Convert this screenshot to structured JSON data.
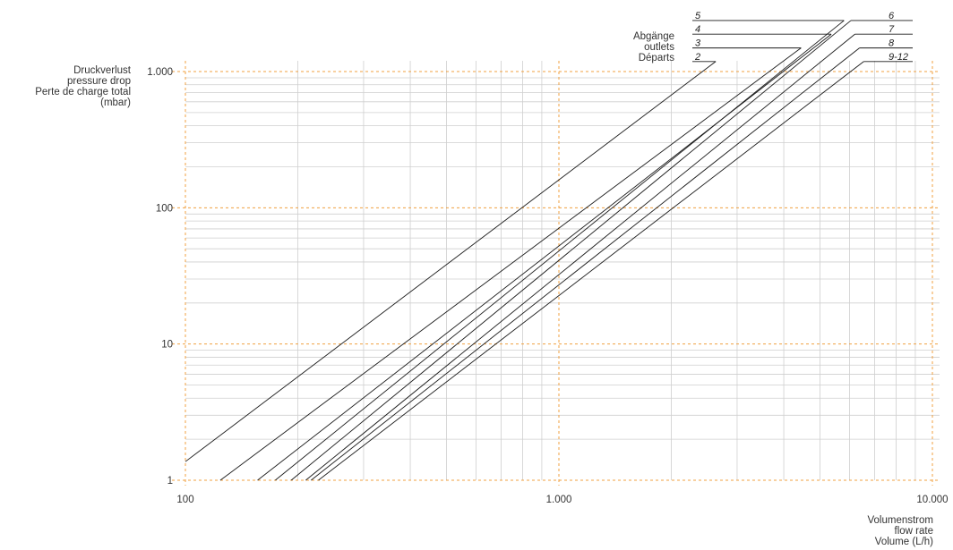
{
  "chart_data": {
    "type": "line",
    "xscale": "log",
    "yscale": "log",
    "xlim": [
      100,
      10000
    ],
    "ylim": [
      1,
      1000
    ],
    "grid": true,
    "ylabel": [
      "Druckverlust",
      "pressure drop",
      "Perte de charge total",
      "(mbar)"
    ],
    "xlabel": [
      "Volumenstrom",
      "flow rate",
      "Volume (L/h)"
    ],
    "legend_title": [
      "Abgänge",
      "outlets",
      "Départs"
    ],
    "x_ticks": [
      {
        "value": 100,
        "label": "100"
      },
      {
        "value": 1000,
        "label": "1.000"
      },
      {
        "value": 10000,
        "label": "10.000"
      }
    ],
    "y_ticks": [
      {
        "value": 1,
        "label": "1"
      },
      {
        "value": 10,
        "label": "10"
      },
      {
        "value": 100,
        "label": "100"
      },
      {
        "value": 1000,
        "label": "1.000"
      }
    ],
    "series": [
      {
        "name": "2",
        "x": [
          100,
          2630
        ],
        "y": [
          1.37,
          1185
        ],
        "label_side": "left"
      },
      {
        "name": "3",
        "x": [
          124,
          4450
        ],
        "y": [
          1,
          1490
        ],
        "label_side": "left"
      },
      {
        "name": "4",
        "x": [
          156,
          5360
        ],
        "y": [
          1,
          1880
        ],
        "label_side": "left"
      },
      {
        "name": "5",
        "x": [
          174,
          5800
        ],
        "y": [
          1,
          2370
        ],
        "label_side": "left"
      },
      {
        "name": "6",
        "x": [
          192,
          6050
        ],
        "y": [
          1,
          2370
        ],
        "label_side": "right"
      },
      {
        "name": "7",
        "x": [
          210,
          6200
        ],
        "y": [
          1,
          1880
        ],
        "label_side": "right"
      },
      {
        "name": "8",
        "x": [
          217,
          6380
        ],
        "y": [
          1,
          1490
        ],
        "label_side": "right"
      },
      {
        "name": "9-12",
        "x": [
          227,
          6550
        ],
        "y": [
          1,
          1185
        ],
        "label_side": "right"
      }
    ]
  }
}
